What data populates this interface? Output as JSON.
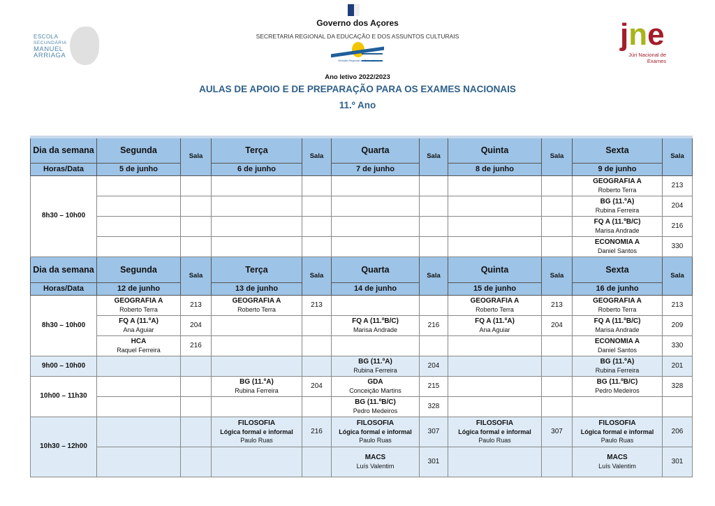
{
  "header": {
    "gov": "Governo dos Açores",
    "secretaria": "SECRETARIA REGIONAL DA EDUCAÇÃO E DOS ASSUNTOS CULTURAIS",
    "school_logo": [
      "ESCOLA",
      "SECUNDÁRIA",
      "MANUEL",
      "ARRIAGA"
    ],
    "dre_logo": "Direção Regional da Educação",
    "jne_logo": "Júri Nacional de Exames",
    "ano": "Ano letivo 2022/2023",
    "title": "AULAS DE APOIO E DE PREPARAÇÃO PARA OS EXAMES NACIONAIS",
    "grade": "11.º Ano"
  },
  "colors": {
    "header_bg": "#9dc3e6",
    "shade_bg": "#deebf7",
    "title": "#2e5f8a"
  },
  "table": {
    "dia_label": "Dia da semana",
    "horas_label": "Horas/Data",
    "sala_label": "Sala",
    "days": [
      "Segunda",
      "Terça",
      "Quarta",
      "Quinta",
      "Sexta"
    ],
    "blocks": [
      {
        "dates": [
          "5 de junho",
          "6 de junho",
          "7 de junho",
          "8 de junho",
          "9 de junho"
        ],
        "slots": [
          {
            "time": "8h30 – 10h00",
            "shaded": false,
            "rows": [
              [
                null,
                null,
                null,
                null,
                {
                  "s": "GEOGRAFIA A",
                  "t": "Roberto Terra",
                  "r": "213"
                }
              ],
              [
                null,
                null,
                null,
                null,
                {
                  "s": "BG (11.ºA)",
                  "t": "Rubina Ferreira",
                  "r": "204"
                }
              ],
              [
                null,
                null,
                null,
                null,
                {
                  "s": "FQ A (11.ºB/C)",
                  "t": "Marisa Andrade",
                  "r": "216"
                }
              ],
              [
                null,
                null,
                null,
                null,
                {
                  "s": "ECONOMIA A",
                  "t": "Daniel Santos",
                  "r": "330"
                }
              ]
            ]
          }
        ]
      },
      {
        "dates": [
          "12 de junho",
          "13 de junho",
          "14 de junho",
          "15 de junho",
          "16 de junho"
        ],
        "slots": [
          {
            "time": "8h30 – 10h00",
            "shaded": false,
            "rows": [
              [
                {
                  "s": "GEOGRAFIA A",
                  "t": "Roberto Terra",
                  "r": "213"
                },
                {
                  "s": "GEOGRAFIA A",
                  "t": "Roberto Terra",
                  "r": "213"
                },
                null,
                {
                  "s": "GEOGRAFIA A",
                  "t": "Roberto Terra",
                  "r": "213"
                },
                {
                  "s": "GEOGRAFIA A",
                  "t": "Roberto Terra",
                  "r": "213"
                }
              ],
              [
                {
                  "s": "FQ A (11.ºA)",
                  "t": "Ana Aguiar",
                  "r": "204"
                },
                null,
                {
                  "s": "FQ A (11.ºB/C)",
                  "t": "Marisa Andrade",
                  "r": "216"
                },
                {
                  "s": "FQ A (11.ºA)",
                  "t": "Ana Aguiar",
                  "r": "204"
                },
                {
                  "s": "FQ A (11.ºB/C)",
                  "t": "Marisa Andrade",
                  "r": "209"
                }
              ],
              [
                {
                  "s": "HCA",
                  "t": "Raquel Ferreira",
                  "r": "216"
                },
                null,
                null,
                null,
                {
                  "s": "ECONOMIA A",
                  "t": "Daniel Santos",
                  "r": "330"
                }
              ]
            ]
          },
          {
            "time": "9h00 – 10h00",
            "shaded": true,
            "rows": [
              [
                null,
                null,
                {
                  "s": "BG (11.ºA)",
                  "t": "Rubina Ferreira",
                  "r": "204"
                },
                null,
                {
                  "s": "BG (11.ºA)",
                  "t": "Rubina Ferreira",
                  "r": "201"
                }
              ]
            ]
          },
          {
            "time": "10h00 – 11h30",
            "shaded": false,
            "rows": [
              [
                null,
                {
                  "s": "BG (11.ºA)",
                  "t": "Rubina Ferreira",
                  "r": "204"
                },
                {
                  "s": "GDA",
                  "t": "Conceição Martins",
                  "r": "215"
                },
                null,
                {
                  "s": "BG (11.ºB/C)",
                  "t": "Pedro Medeiros",
                  "r": "328"
                }
              ],
              [
                null,
                null,
                {
                  "s": "BG (11.ºB/C)",
                  "t": "Pedro Medeiros",
                  "r": "328"
                },
                null,
                null
              ]
            ]
          },
          {
            "time": "10h30 – 12h00",
            "shaded": true,
            "tall": true,
            "rows": [
              [
                null,
                {
                  "s": "FILOSOFIA",
                  "x": "Lógica formal e informal",
                  "t": "Paulo Ruas",
                  "r": "216"
                },
                {
                  "s": "FILOSOFIA",
                  "x": "Lógica formal e informal",
                  "t": "Paulo Ruas",
                  "r": "307"
                },
                {
                  "s": "FILOSOFIA",
                  "x": "Lógica formal e informal",
                  "t": "Paulo Ruas",
                  "r": "307"
                },
                {
                  "s": "FILOSOFIA",
                  "x": "Lógica formal e informal",
                  "t": "Paulo Ruas",
                  "r": "206"
                }
              ],
              [
                null,
                null,
                {
                  "s": "MACS",
                  "t": "Luís Valentim",
                  "r": "301"
                },
                null,
                {
                  "s": "MACS",
                  "t": "Luís Valentim",
                  "r": "301"
                }
              ]
            ]
          }
        ]
      }
    ]
  }
}
